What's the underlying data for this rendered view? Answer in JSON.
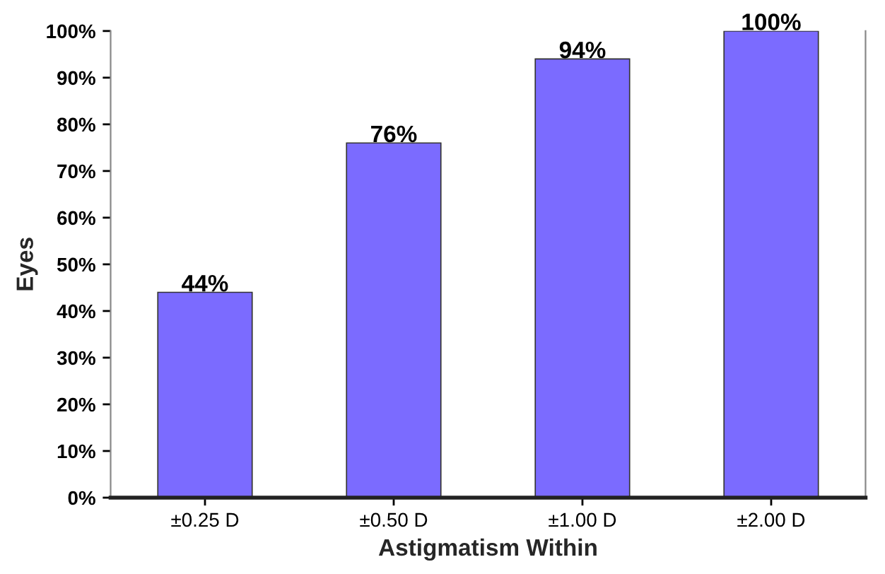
{
  "chart_data": {
    "type": "bar",
    "xlabel": "Astigmatism Within",
    "ylabel": "Eyes",
    "categories": [
      "±0.25 D",
      "±0.50 D",
      "±1.00 D",
      "±2.00 D"
    ],
    "values": [
      44,
      76,
      94,
      100
    ],
    "color": "#7b6bff",
    "value_labels": [
      "44%",
      "76%",
      "94%",
      "100%"
    ],
    "ylim": [
      0,
      100
    ],
    "yticks": [
      {
        "value": 0,
        "label": "0%"
      },
      {
        "value": 10,
        "label": "10%"
      },
      {
        "value": 20,
        "label": "20%"
      },
      {
        "value": 30,
        "label": "30%"
      },
      {
        "value": 40,
        "label": "40%"
      },
      {
        "value": 50,
        "label": "50%"
      },
      {
        "value": 60,
        "label": "60%"
      },
      {
        "value": 70,
        "label": "70%"
      },
      {
        "value": 80,
        "label": "80%"
      },
      {
        "value": 90,
        "label": "90%"
      },
      {
        "value": 100,
        "label": "100%"
      }
    ],
    "grid": false,
    "legend": false
  }
}
